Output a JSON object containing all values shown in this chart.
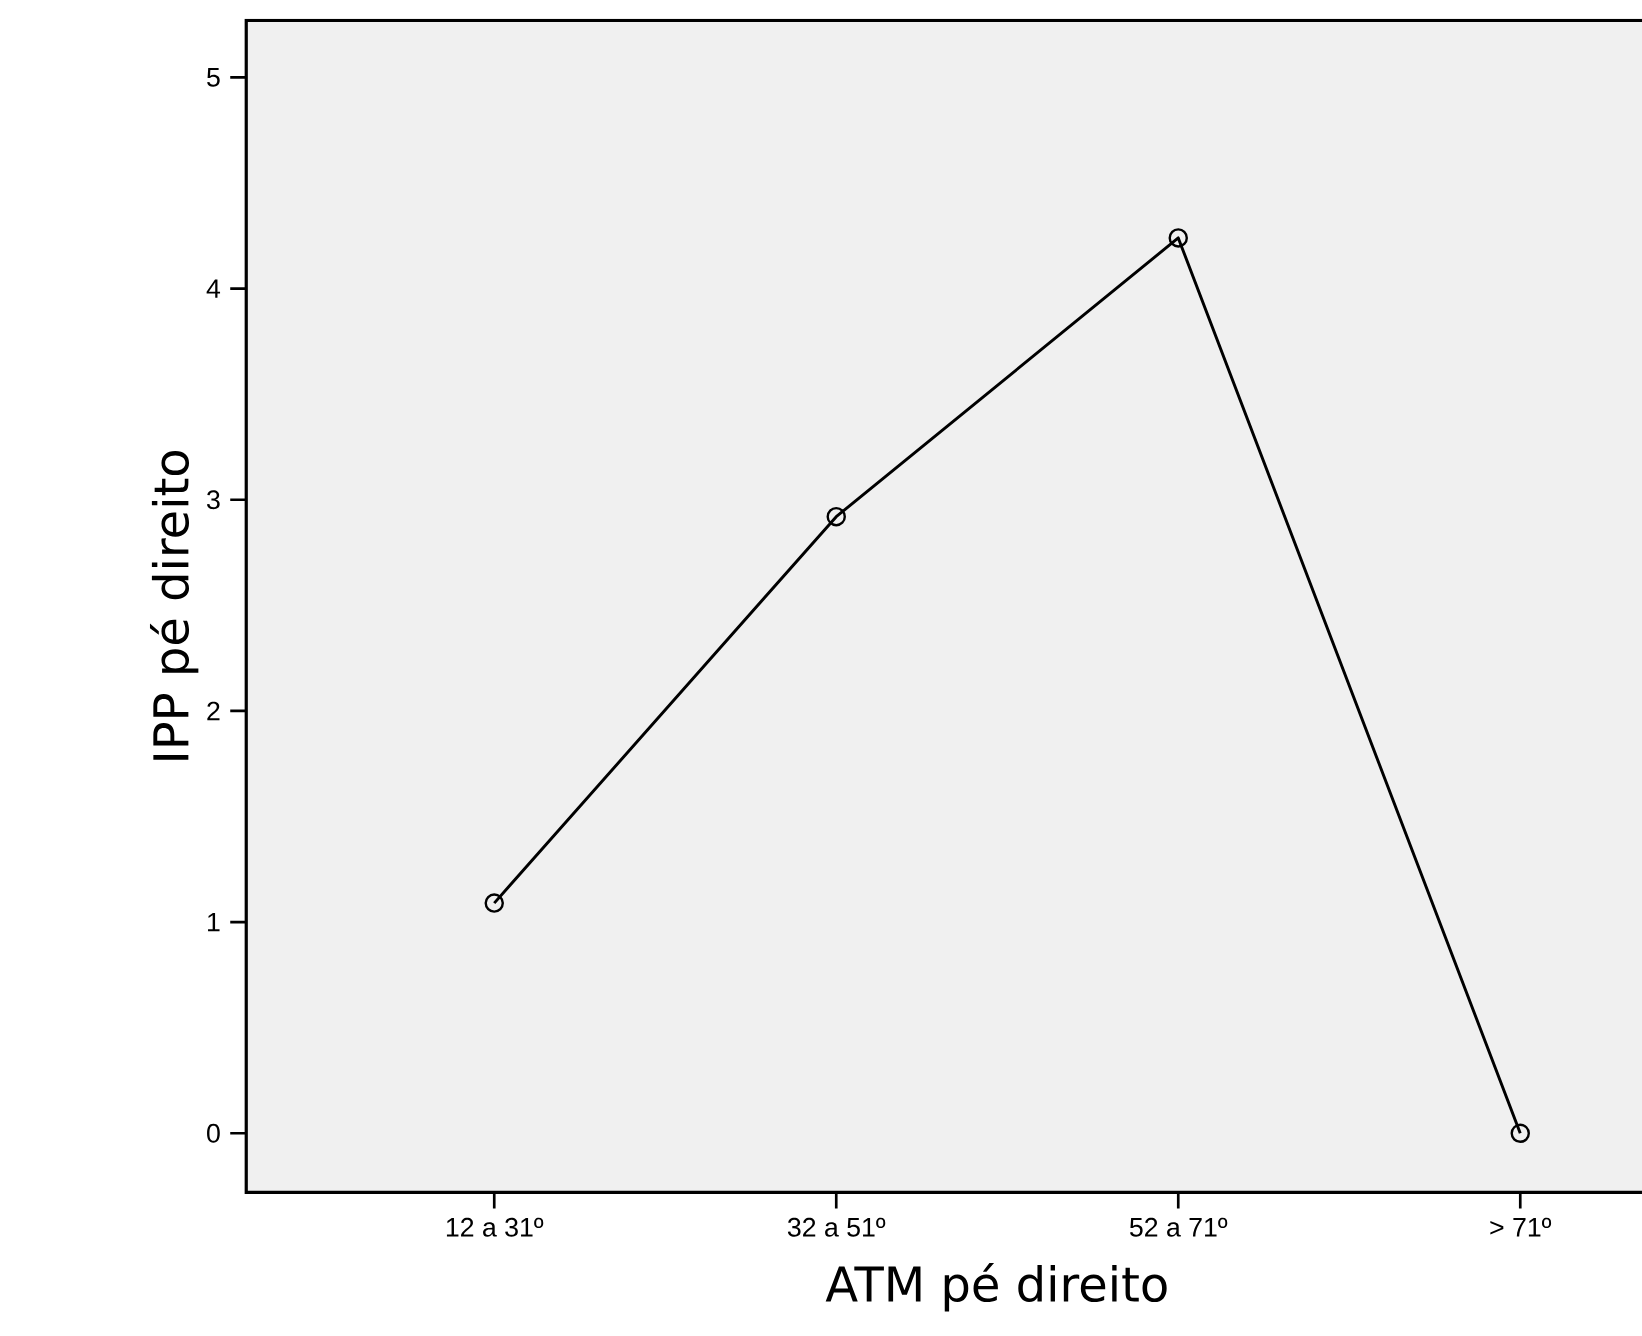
{
  "chart_data": {
    "type": "line",
    "xlabel": "ATM pé direito",
    "ylabel": "IPP pé direito",
    "categories": [
      "12 a 31º",
      "32 a 51º",
      "52 a 71º",
      "> 71º"
    ],
    "values": [
      1.09,
      2.92,
      4.24,
      0.0
    ],
    "color": "#000000",
    "ylim": [
      -0.28,
      5.27
    ],
    "yticks": [
      0,
      1,
      2,
      3,
      4,
      5
    ],
    "marker": "circle",
    "line_style": "solid"
  }
}
